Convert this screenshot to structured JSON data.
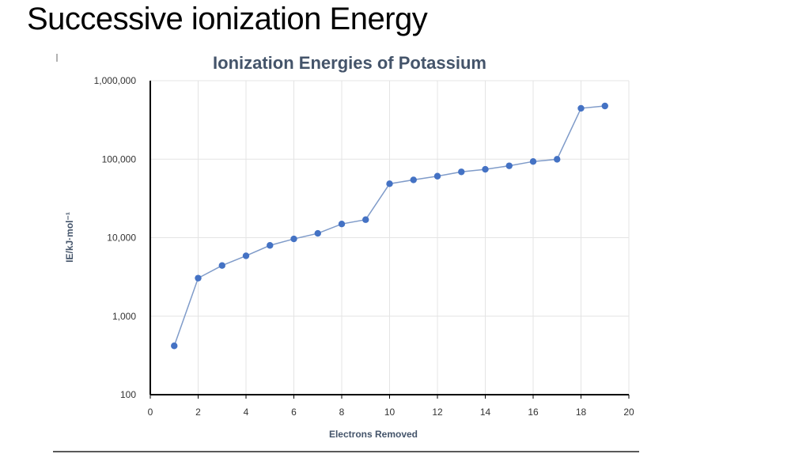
{
  "slide": {
    "title": "Successive ionization Energy"
  },
  "chart_data": {
    "type": "line",
    "title": "Ionization Energies of Potassium",
    "xlabel": "Electrons Removed",
    "ylabel": "IE/kJ·mol⁻¹",
    "xlim": [
      0,
      20
    ],
    "ylim": [
      100,
      1000000
    ],
    "yscale": "log",
    "grid": true,
    "x_ticks": [
      "0",
      "2",
      "4",
      "6",
      "8",
      "10",
      "12",
      "14",
      "16",
      "18",
      "20"
    ],
    "y_ticks": [
      "100",
      "1,000",
      "10,000",
      "100,000",
      "1,000,000"
    ],
    "color": "#4472c4",
    "line_color": "#7f9bc9",
    "x": [
      1,
      2,
      3,
      4,
      5,
      6,
      7,
      8,
      9,
      10,
      11,
      12,
      13,
      14,
      15,
      16,
      17,
      18,
      19
    ],
    "y": [
      419,
      3052,
      4420,
      5877,
      7975,
      9649,
      11343,
      14942,
      16964,
      48610,
      54490,
      60730,
      68950,
      74260,
      82290,
      93400,
      99710,
      444870,
      476061
    ]
  }
}
